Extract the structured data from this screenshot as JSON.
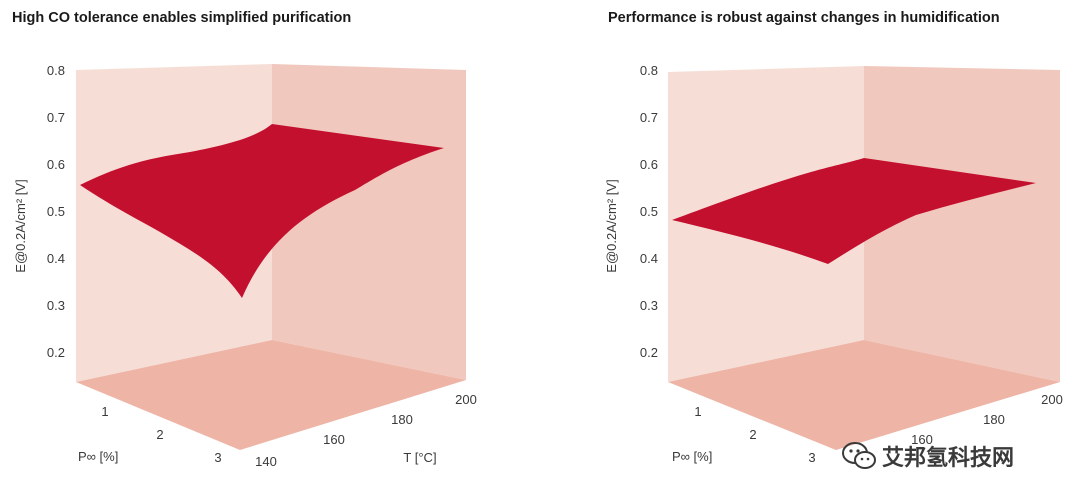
{
  "chart_data": [
    {
      "type": "surface3d",
      "title": "High CO tolerance enables simplified purification",
      "zlabel": "E@0.2A/cm² [V]",
      "z_ticks": [
        "0.8",
        "0.7",
        "0.6",
        "0.5",
        "0.4",
        "0.3",
        "0.2"
      ],
      "zlim": [
        0.13,
        0.8
      ],
      "x_label": "P∞ [%]",
      "x_ticks": [
        "1",
        "2",
        "3"
      ],
      "y_label": "T [°C]",
      "y_ticks": [
        "140",
        "160",
        "180",
        "200"
      ],
      "surface": {
        "corners": [
          {
            "p": 0,
            "t": 140,
            "e": 0.55
          },
          {
            "p": 3,
            "t": 140,
            "e": 0.31
          },
          {
            "p": 3,
            "t": 200,
            "e": 0.57
          },
          {
            "p": 0,
            "t": 200,
            "e": 0.68
          }
        ]
      },
      "colors": {
        "surface": "#c4102f",
        "back_wall": "#f6ded6",
        "side_wall": "#f1c8bd",
        "floor": "#eeb4a6"
      }
    },
    {
      "type": "surface3d",
      "title": "Performance is robust against changes in humidification",
      "zlabel": "E@0.2A/cm² [V]",
      "z_ticks": [
        "0.8",
        "0.7",
        "0.6",
        "0.5",
        "0.4",
        "0.3",
        "0.2"
      ],
      "zlim": [
        0.13,
        0.8
      ],
      "x_label": "P∞ [%]",
      "x_ticks": [
        "1",
        "2",
        "3"
      ],
      "y_label": "",
      "y_ticks": [
        "160",
        "180",
        "200"
      ],
      "surface": {
        "corners": [
          {
            "p": 0,
            "e": 0.48
          },
          {
            "p": 3,
            "e": 0.39
          },
          {
            "p": 3,
            "e": 0.5
          },
          {
            "p": 0,
            "e": 0.6
          }
        ]
      },
      "colors": {
        "surface": "#c4102f",
        "back_wall": "#f6ded6",
        "side_wall": "#f1c8bd",
        "floor": "#eeb4a6"
      }
    }
  ],
  "watermark": {
    "text": "艾邦氢科技网",
    "icon": "wechat-icon"
  }
}
